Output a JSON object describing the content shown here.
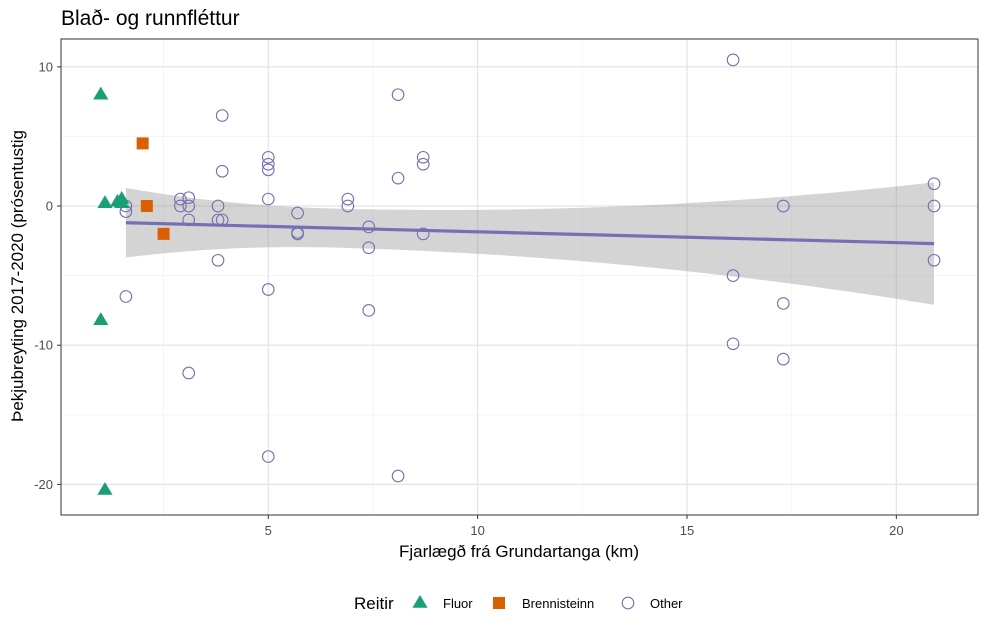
{
  "chart_data": {
    "type": "scatter",
    "title": "Blað- og runnfléttur",
    "xlabel": "Fjarlægð frá Grundartanga (km)",
    "ylabel": "Þekjubreyting 2017-2020 (prósentustig",
    "xlim": [
      0.05,
      21.95
    ],
    "ylim": [
      -22.2,
      12.0
    ],
    "x_ticks": [
      5,
      10,
      15,
      20
    ],
    "x_tick_labels": [
      "5",
      "10",
      "15",
      "20"
    ],
    "y_ticks": [
      -20,
      -10,
      0,
      10
    ],
    "y_tick_labels": [
      "-20",
      "-10",
      "0",
      "10"
    ],
    "grid": true,
    "legend": {
      "title": "Reitir",
      "position": "bottom",
      "entries": [
        {
          "name": "Fluor",
          "shape": "triangle",
          "color": "#1b9e77"
        },
        {
          "name": "Brennisteinn",
          "shape": "square",
          "color": "#d95f02"
        },
        {
          "name": "Other",
          "shape": "circle-open",
          "color": "#7570b3"
        }
      ]
    },
    "series": [
      {
        "name": "Fluor",
        "shape": "triangle",
        "color": "#1b9e77",
        "points": [
          [
            1.0,
            8.0
          ],
          [
            1.1,
            0.2
          ],
          [
            1.0,
            -8.2
          ],
          [
            1.1,
            -20.4
          ],
          [
            1.4,
            0.3
          ],
          [
            1.5,
            0.5
          ],
          [
            1.5,
            0.2
          ]
        ]
      },
      {
        "name": "Brennisteinn",
        "shape": "square",
        "color": "#d95f02",
        "points": [
          [
            2.0,
            4.5
          ],
          [
            2.1,
            0.0
          ],
          [
            2.5,
            -2.0
          ]
        ]
      },
      {
        "name": "Other",
        "shape": "circle-open",
        "color": "#7570b3",
        "points": [
          [
            1.6,
            -0.4
          ],
          [
            1.6,
            0.0
          ],
          [
            1.6,
            -6.5
          ],
          [
            2.9,
            0.5
          ],
          [
            2.9,
            0.0
          ],
          [
            3.1,
            0.6
          ],
          [
            3.1,
            0.0
          ],
          [
            3.1,
            -1.0
          ],
          [
            3.1,
            -12.0
          ],
          [
            3.8,
            0.0
          ],
          [
            3.8,
            -1.0
          ],
          [
            3.8,
            -3.9
          ],
          [
            3.9,
            6.5
          ],
          [
            3.9,
            2.5
          ],
          [
            3.9,
            -1.0
          ],
          [
            5.0,
            3.5
          ],
          [
            5.0,
            3.0
          ],
          [
            5.0,
            2.6
          ],
          [
            5.0,
            0.5
          ],
          [
            5.0,
            -6.0
          ],
          [
            5.0,
            -18.0
          ],
          [
            5.7,
            -0.5
          ],
          [
            5.7,
            -1.9
          ],
          [
            5.7,
            -2.0
          ],
          [
            6.9,
            0.5
          ],
          [
            6.9,
            0.0
          ],
          [
            7.4,
            -1.5
          ],
          [
            7.4,
            -3.0
          ],
          [
            7.4,
            -7.5
          ],
          [
            8.1,
            8.0
          ],
          [
            8.1,
            2.0
          ],
          [
            8.1,
            -19.4
          ],
          [
            8.7,
            3.5
          ],
          [
            8.7,
            3.0
          ],
          [
            8.7,
            -2.0
          ],
          [
            16.1,
            10.5
          ],
          [
            16.1,
            -5.0
          ],
          [
            16.1,
            -9.9
          ],
          [
            17.3,
            0.0
          ],
          [
            17.3,
            -7.0
          ],
          [
            17.3,
            -11.0
          ],
          [
            20.9,
            1.6
          ],
          [
            20.9,
            0.0
          ],
          [
            20.9,
            -3.9
          ]
        ]
      }
    ],
    "trend_line": {
      "x": [
        1.6,
        20.9
      ],
      "y": [
        -1.2,
        -2.7
      ],
      "color": "#7570b3",
      "ci_lower": [
        -3.7,
        -7.1
      ],
      "ci_upper": [
        1.3,
        1.7
      ]
    }
  }
}
